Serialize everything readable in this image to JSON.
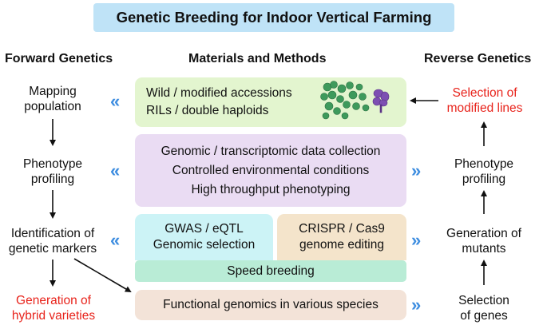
{
  "title": "Genetic Breeding for Indoor Vertical Farming",
  "headers": {
    "forward": "Forward Genetics",
    "materials": "Materials and Methods",
    "reverse": "Reverse Genetics"
  },
  "forward": {
    "mapping": [
      "Mapping",
      "population"
    ],
    "phenotype": [
      "Phenotype",
      "profiling"
    ],
    "markers": [
      "Identification of",
      "genetic markers"
    ],
    "hybrid": [
      "Generation of",
      "hybrid varieties"
    ]
  },
  "reverse": {
    "selection_lines": [
      "Selection of",
      "modified lines"
    ],
    "phenotype": [
      "Phenotype",
      "profiling"
    ],
    "mutants": [
      "Generation of",
      "mutants"
    ],
    "genes": [
      "Selection",
      "of genes"
    ]
  },
  "materials": {
    "green": [
      "Wild / modified accessions",
      "RILs / double haploids"
    ],
    "purple": [
      "Genomic / transcriptomic data collection",
      "Controlled environmental conditions",
      "High throughput phenotyping"
    ],
    "cyan": [
      "GWAS / eQTL",
      "Genomic selection"
    ],
    "tan": [
      "CRISPR / Cas9",
      "genome editing"
    ],
    "speed": "Speed breeding",
    "functional": "Functional genomics in various species"
  },
  "colors": {
    "title_bg": "#bfe3f7",
    "red_text": "#e8231b",
    "chevron": "#3d8de0",
    "green_box": "#e3f5cf",
    "purple_box": "#eadcf3",
    "cyan_box": "#ccf3f6",
    "tan_box": "#f4e4cb",
    "speed_box": "#b9ecd6",
    "functional_box": "#f3e3d8"
  },
  "icons": {
    "chevron_left": "«",
    "chevron_right": "»",
    "plant": "plant-illustration-icon"
  }
}
